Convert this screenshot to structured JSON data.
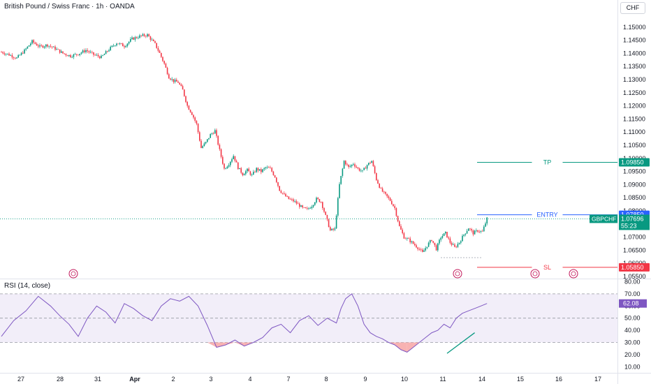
{
  "header": {
    "title": "British Pound / Swiss Franc · 1h · OANDA",
    "currency": "CHF"
  },
  "rsi_panel": {
    "title": "RSI (14, close)",
    "current_label": "62.08"
  },
  "price_tags": {
    "tp": "1.09850",
    "entry": "1.07850",
    "symbol": "GBPCHF",
    "last": "1.07696",
    "countdown": "55:23",
    "sl": "1.05850"
  },
  "line_labels": {
    "tp": "TP",
    "entry": "ENTRY",
    "sl": "SL"
  },
  "colors": {
    "up": "#089981",
    "down": "#f23645",
    "tp": "#089981",
    "entry": "#2962ff",
    "sl": "#f23645",
    "rsi": "#7e57c2",
    "rsi_band": "#ede7f6",
    "oversold_fill": "#f7a5a5"
  },
  "chart_data": [
    {
      "type": "candlestick",
      "symbol": "GBPCHF",
      "interval": "1h",
      "ylim": [
        1.055,
        1.155
      ],
      "y_ticks": [
        "1.15000",
        "1.14500",
        "1.14000",
        "1.13500",
        "1.13000",
        "1.12500",
        "1.12000",
        "1.11500",
        "1.11000",
        "1.10500",
        "1.10000",
        "1.09500",
        "1.09000",
        "1.08500",
        "1.08000",
        "1.07500",
        "1.07000",
        "1.06500",
        "1.06000",
        "1.05500"
      ],
      "x_ticks": [
        "27",
        "28",
        "31",
        "Apr",
        "2",
        "3",
        "4",
        "7",
        "8",
        "9",
        "10",
        "11",
        "14",
        "15",
        "16",
        "17"
      ],
      "levels": {
        "tp": 1.0985,
        "entry": 1.0785,
        "sl": 1.0585,
        "last": 1.07696
      },
      "path": [
        [
          0,
          1.1405
        ],
        [
          5,
          1.1395
        ],
        [
          10,
          1.1382
        ],
        [
          15,
          1.141
        ],
        [
          20,
          1.1445
        ],
        [
          25,
          1.1425
        ],
        [
          30,
          1.1432
        ],
        [
          35,
          1.1418
        ],
        [
          40,
          1.14
        ],
        [
          45,
          1.139
        ],
        [
          50,
          1.1398
        ],
        [
          55,
          1.1412
        ],
        [
          60,
          1.1395
        ],
        [
          65,
          1.1385
        ],
        [
          70,
          1.1415
        ],
        [
          75,
          1.144
        ],
        [
          80,
          1.1428
        ],
        [
          85,
          1.1455
        ],
        [
          90,
          1.1465
        ],
        [
          95,
          1.147
        ],
        [
          100,
          1.1435
        ],
        [
          103,
          1.14
        ],
        [
          106,
          1.136
        ],
        [
          109,
          1.131
        ],
        [
          112,
          1.1295
        ],
        [
          115,
          1.129
        ],
        [
          118,
          1.126
        ],
        [
          121,
          1.12
        ],
        [
          124,
          1.117
        ],
        [
          127,
          1.113
        ],
        [
          130,
          1.104
        ],
        [
          133,
          1.106
        ],
        [
          136,
          1.109
        ],
        [
          139,
          1.1105
        ],
        [
          142,
          1.103
        ],
        [
          145,
          1.096
        ],
        [
          148,
          1.098
        ],
        [
          151,
          1.101
        ],
        [
          154,
          1.0965
        ],
        [
          157,
          1.094
        ],
        [
          160,
          1.0955
        ],
        [
          163,
          1.0935
        ],
        [
          166,
          1.096
        ],
        [
          169,
          1.095
        ],
        [
          172,
          1.0965
        ],
        [
          175,
          1.096
        ],
        [
          178,
          1.093
        ],
        [
          181,
          1.088
        ],
        [
          184,
          1.086
        ],
        [
          187,
          1.0845
        ],
        [
          190,
          1.0838
        ],
        [
          193,
          1.0825
        ],
        [
          196,
          1.081
        ],
        [
          199,
          1.0805
        ],
        [
          202,
          1.082
        ],
        [
          205,
          1.0845
        ],
        [
          208,
          1.0835
        ],
        [
          211,
          1.078
        ],
        [
          214,
          1.0725
        ],
        [
          217,
          1.073
        ],
        [
          220,
          1.09
        ],
        [
          223,
          1.099
        ],
        [
          226,
          1.0965
        ],
        [
          229,
          1.098
        ],
        [
          232,
          1.096
        ],
        [
          235,
          1.095
        ],
        [
          238,
          1.0975
        ],
        [
          241,
          1.099
        ],
        [
          244,
          1.092
        ],
        [
          247,
          1.088
        ],
        [
          250,
          1.086
        ],
        [
          253,
          1.084
        ],
        [
          256,
          1.081
        ],
        [
          259,
          1.074
        ],
        [
          262,
          1.07
        ],
        [
          265,
          1.069
        ],
        [
          268,
          1.0675
        ],
        [
          271,
          1.066
        ],
        [
          274,
          1.064
        ],
        [
          277,
          1.0668
        ],
        [
          280,
          1.069
        ],
        [
          283,
          1.0655
        ],
        [
          286,
          1.07
        ],
        [
          289,
          1.0715
        ],
        [
          292,
          1.068
        ],
        [
          295,
          1.066
        ],
        [
          298,
          1.068
        ],
        [
          301,
          1.071
        ],
        [
          304,
          1.0735
        ],
        [
          307,
          1.0715
        ],
        [
          310,
          1.0725
        ],
        [
          313,
          1.072
        ],
        [
          316,
          1.077
        ]
      ]
    },
    {
      "type": "line",
      "name": "RSI (14, close)",
      "ylim": [
        5,
        82
      ],
      "y_ticks": [
        "80.00",
        "70.00",
        "60.00",
        "50.00",
        "40.00",
        "30.00",
        "20.00",
        "10.00"
      ],
      "bands": {
        "upper": 70,
        "middle": 50,
        "lower": 30
      },
      "current": 62.08,
      "x": [
        0,
        8,
        16,
        24,
        32,
        38,
        44,
        50,
        56,
        62,
        68,
        74,
        80,
        86,
        92,
        98,
        104,
        110,
        116,
        122,
        128,
        134,
        140,
        146,
        152,
        158,
        164,
        170,
        176,
        182,
        188,
        194,
        200,
        206,
        212,
        218,
        221,
        224,
        228,
        232,
        236,
        240,
        244,
        248,
        252,
        256,
        260,
        264,
        268,
        272,
        276,
        280,
        284,
        288,
        292,
        296,
        300,
        304,
        308,
        312,
        316
      ],
      "y": [
        35,
        48,
        56,
        68,
        60,
        52,
        45,
        35,
        50,
        60,
        55,
        46,
        62,
        58,
        52,
        48,
        60,
        66,
        64,
        68,
        60,
        44,
        26,
        28,
        32,
        27,
        30,
        34,
        42,
        45,
        38,
        48,
        52,
        44,
        50,
        46,
        58,
        66,
        70,
        60,
        45,
        38,
        35,
        33,
        30,
        28,
        24,
        22,
        26,
        30,
        34,
        38,
        40,
        45,
        42,
        50,
        54,
        56,
        58,
        60,
        62.08
      ]
    }
  ]
}
